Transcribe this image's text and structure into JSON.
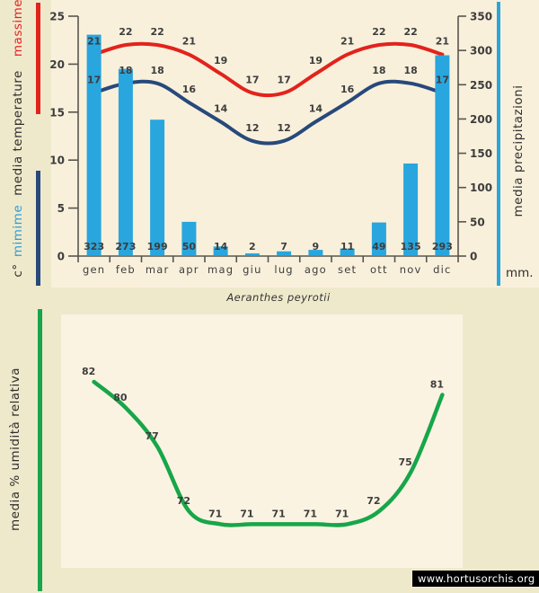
{
  "labels": {
    "massime": "massime",
    "media_temperature": "media  temperature",
    "mimime": "mimime",
    "celsius": "c°",
    "media_precipitazioni": "media  precipitazioni",
    "mm_unit": "mm.",
    "umidita": "media %  umidità relativa",
    "title": "Aeranthes peyrotii",
    "watermark": "www.hortusorchis.org"
  },
  "colors": {
    "max_line": "#e2231c",
    "min_line": "#27497b",
    "bars": "#29a6de",
    "humidity_line": "#17a64a",
    "axis": "#57554e",
    "text": "#3d3d3d",
    "bg_outer": "#efe9cc",
    "bg_top": "#f9f0db",
    "bg_bottom_plot": "#fbf3e2"
  },
  "chart_data": [
    {
      "type": "bar",
      "subtype": "climate combo: precipitation bars + smoothed temperature lines",
      "title": "Aeranthes peyrotii",
      "categories": [
        "gen",
        "feb",
        "mar",
        "apr",
        "mag",
        "giu",
        "lug",
        "ago",
        "set",
        "ott",
        "nov",
        "dic"
      ],
      "series": [
        {
          "name": "media precipitazioni",
          "type": "bar",
          "unit": "mm",
          "values": [
            323,
            273,
            199,
            50,
            14,
            2,
            7,
            9,
            11,
            49,
            135,
            293
          ]
        },
        {
          "name": "temperature massime",
          "type": "line",
          "unit": "c°",
          "values": [
            21,
            22,
            22,
            21,
            19,
            17,
            17,
            19,
            21,
            22,
            22,
            21
          ]
        },
        {
          "name": "temperature mimime",
          "type": "line",
          "unit": "c°",
          "values": [
            17,
            18,
            18,
            16,
            14,
            12,
            12,
            14,
            16,
            18,
            18,
            17
          ]
        }
      ],
      "left_axis": {
        "label": "c°  mimime  media temperature  massime",
        "ticks": [
          25,
          20,
          15,
          10,
          5,
          0
        ],
        "range": [
          0,
          25
        ]
      },
      "right_axis": {
        "label": "media precipitazioni",
        "unit": "mm.",
        "ticks": [
          350,
          300,
          250,
          200,
          150,
          100,
          50,
          0
        ],
        "range": [
          0,
          350
        ]
      },
      "grid": false,
      "legend_position": "left/right rotated labels"
    },
    {
      "type": "line",
      "subtype": "smoothed humidity curve, no visible axes",
      "categories": [
        "gen",
        "feb",
        "mar",
        "apr",
        "mag",
        "giu",
        "lug",
        "ago",
        "set",
        "ott",
        "nov",
        "dic"
      ],
      "series": [
        {
          "name": "media % umidità relativa",
          "type": "line",
          "unit": "%",
          "values": [
            82,
            80,
            77,
            72,
            71,
            71,
            71,
            71,
            71,
            72,
            75,
            81
          ]
        }
      ],
      "ylim": [
        68,
        85
      ],
      "grid": false
    }
  ]
}
